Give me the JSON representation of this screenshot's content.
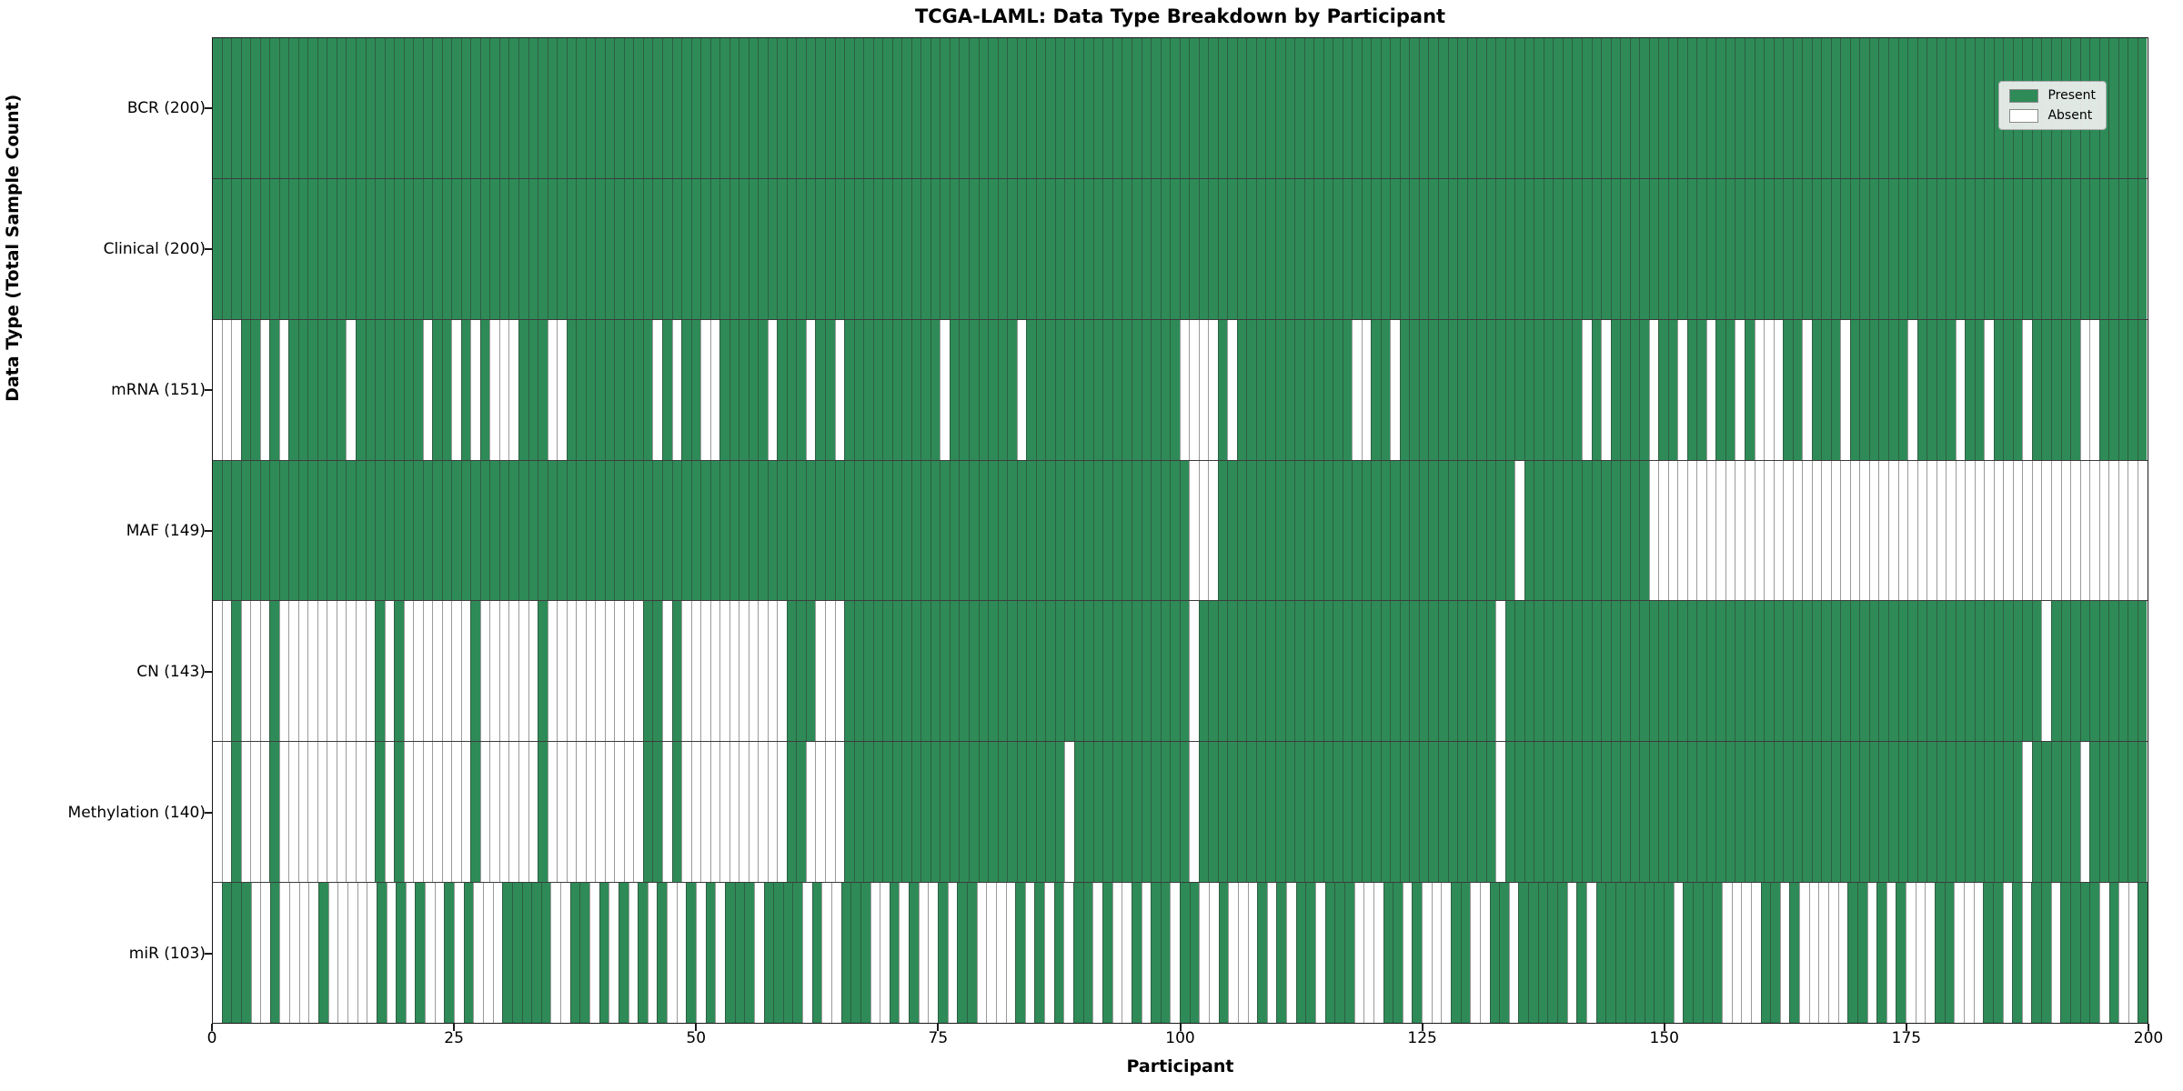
{
  "title": "TCGA-LAML: Data Type Breakdown by Participant",
  "xlabel": "Participant",
  "ylabel": "Data Type (Total Sample Count)",
  "legend": {
    "present_label": "Present",
    "absent_label": "Absent"
  },
  "colors": {
    "present": "#2e8b57",
    "absent": "#ffffff",
    "grid": "#3c3c3c"
  },
  "chart_data": {
    "type": "heatmap",
    "x_axis_label": "Participant",
    "y_axis_label": "Data Type (Total Sample Count)",
    "x_range": [
      0,
      200
    ],
    "x_tick_labels": [
      "0",
      "25",
      "50",
      "75",
      "100",
      "125",
      "150",
      "175",
      "200"
    ],
    "legend_position": "upper right",
    "value_encoding": {
      "1": "Present",
      "0": "Absent"
    },
    "rows": [
      {
        "label": "BCR (200)",
        "count": 200,
        "present": "1111111111111111111111111111111111111111111111111111111111111111111111111111111111111111111111111111111111111111111111111111111111111111111111111111111111111111111111111111111111111111111111111111111111"
      },
      {
        "label": "Clinical (200)",
        "count": 200,
        "present": "1111111111111111111111111111111111111111111111111111111111111111111111111111111111111111111111111111111111111111111111111111111111111111111111111111111111111111111111111111111111111111111111111111111111"
      },
      {
        "label": "mRNA (151)",
        "count": 151,
        "present": "0001101011111101111111011010100011100111111111010110011111011101101111111111011111110111111111111111100001011111111111100110111111111111111111101011110110110110100011011101111110111101101110111110011111"
      },
      {
        "label": "MAF (149)",
        "count": 149,
        "present": "1111111111111111111111111111111111111111111111111111111111111111111111111111111111111111111111111111110001111111111111111111111111111111011111111111110000000000000000000000000000000000000000000000000000"
      },
      {
        "label": "CN (143)",
        "count": 143,
        "present": "0010001000000000010100000001000000100000000001101000000000001110001111111111111111111111111111111111110111111111111111111111111111111101111111111111111111111111111111111111111111111111111111101111111111"
      },
      {
        "label": "Methylation (140)",
        "count": 140,
        "present": "0010001000000000010100000001000000100000000001101000000000001100001111111111111111111111101111111111110111111111111111111111111111111101111111111111111111111111111111111111111111111111111110111110111111"
      },
      {
        "label": "miR (103)",
        "count": 103,
        "present": "0111001000010000010101001010001111100110101010100101011101111010011100101001011000010101011010010110110010001010110111000110100011001101111101011111111011110000110100000110101000110001101011011110100 1"
      }
    ]
  }
}
